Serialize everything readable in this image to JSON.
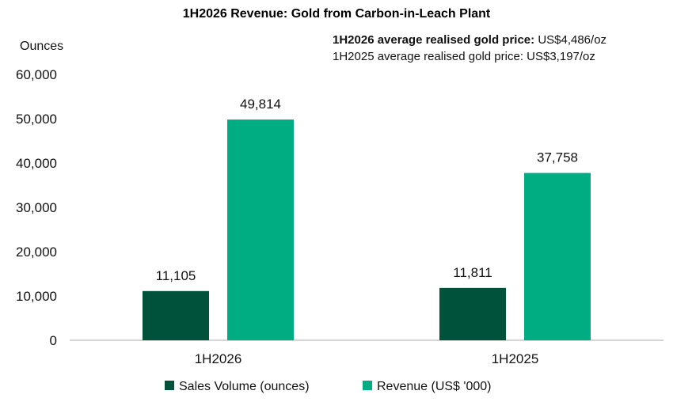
{
  "chart_data": {
    "type": "bar",
    "title": "1H2026 Revenue: Gold from Carbon-in-Leach Plant",
    "ylabel": "Ounces",
    "xlabel": "",
    "categories": [
      "1H2026",
      "1H2025"
    ],
    "ylim": [
      0,
      60000
    ],
    "yticks": [
      "0",
      "10,000",
      "20,000",
      "30,000",
      "40,000",
      "50,000",
      "60,000"
    ],
    "grid": false,
    "legend_position": "bottom",
    "series": [
      {
        "name": "Sales Volume (ounces)",
        "values": [
          11105,
          11811
        ],
        "labels": [
          "11,105",
          "11,811"
        ],
        "color": "#00533A"
      },
      {
        "name": "Revenue (US$ '000)",
        "values": [
          49814,
          37758
        ],
        "labels": [
          "49,814",
          "37,758"
        ],
        "color": "#00AD83"
      }
    ],
    "annotations": [
      {
        "bold": "1H2026 average realised gold price:",
        "text": "US$4,486/oz"
      },
      {
        "bold": "",
        "text": "1H2025 average realised gold price: US$3,197/oz"
      }
    ]
  }
}
